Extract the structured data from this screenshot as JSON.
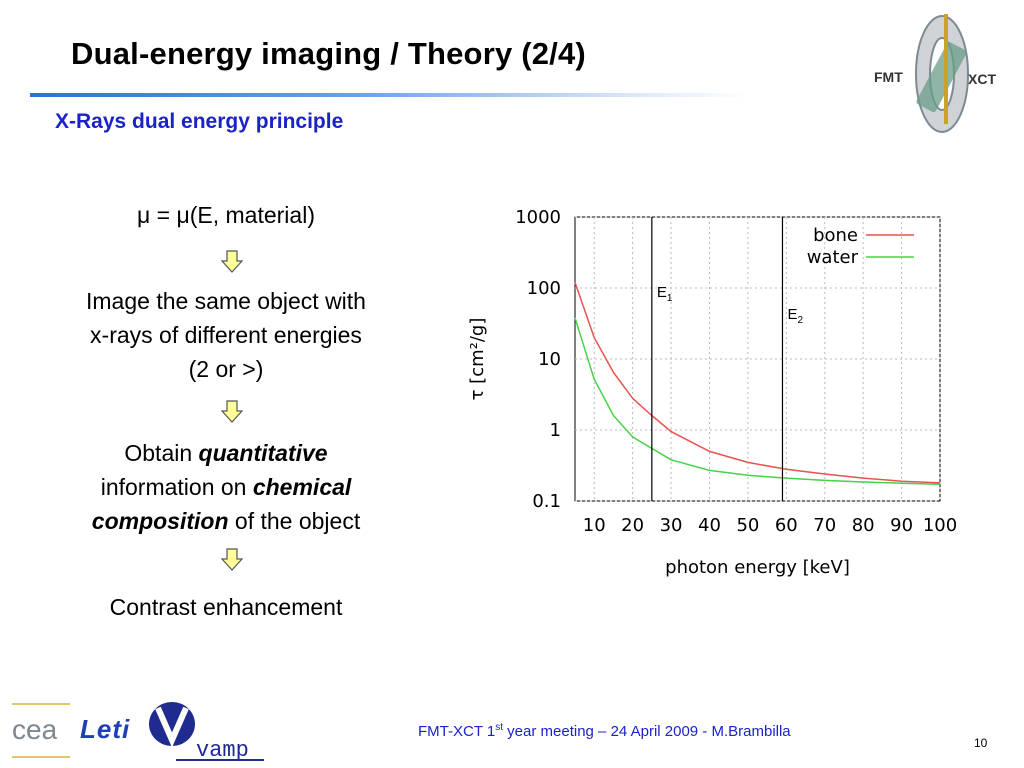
{
  "slide": {
    "title": "Dual-energy imaging / Theory (2/4)",
    "subtitle": "X-Rays dual energy principle",
    "page_number": "10"
  },
  "logos": {
    "fmt_left": "FMT",
    "fmt_right": "XCT",
    "cea": "cea",
    "leti": "Leti",
    "vamp": "vamp"
  },
  "content": {
    "formula": "μ = μ(E, material)",
    "step1_line1": "Image the same object  with",
    "step1_line2": "x-rays of different energies",
    "step1_line3": "(2 or >)",
    "step2_prefix": "Obtain ",
    "step2_emph1": "quantitative",
    "step2_mid": "information on ",
    "step2_emph2": "chemical",
    "step2_emph3": "composition",
    "step2_suffix": " of the object",
    "step3": "Contrast enhancement"
  },
  "footer": {
    "text_prefix": "FMT-XCT 1",
    "text_sup": "st",
    "text_suffix": " year meeting – 24 April 2009 - M.Brambilla"
  },
  "chart_data": {
    "type": "line",
    "xlabel": "photon energy [keV]",
    "ylabel": "τ [cm²/g]",
    "xlim": [
      5,
      100
    ],
    "ylim": [
      0.1,
      1000
    ],
    "yscale": "log",
    "grid": true,
    "legend": "top-right",
    "x_ticks": [
      "10",
      "20",
      "30",
      "40",
      "50",
      "60",
      "70",
      "80",
      "90",
      "100"
    ],
    "y_ticks": [
      "0.1",
      "1",
      "10",
      "100",
      "1000"
    ],
    "series": [
      {
        "name": "bone",
        "color": "#e8534f",
        "x": [
          5,
          10,
          15,
          20,
          25,
          30,
          40,
          50,
          60,
          70,
          80,
          90,
          100
        ],
        "y": [
          120,
          20,
          6.5,
          2.8,
          1.6,
          0.95,
          0.5,
          0.35,
          0.28,
          0.24,
          0.21,
          0.19,
          0.18
        ]
      },
      {
        "name": "water",
        "color": "#46d24a",
        "x": [
          5,
          10,
          15,
          20,
          25,
          30,
          40,
          50,
          60,
          70,
          80,
          90,
          100
        ],
        "y": [
          38,
          5.2,
          1.6,
          0.8,
          0.55,
          0.38,
          0.27,
          0.23,
          0.21,
          0.195,
          0.185,
          0.178,
          0.172
        ]
      }
    ],
    "markers": [
      {
        "label": "E",
        "sub": "1",
        "x": 25
      },
      {
        "label": "E",
        "sub": "2",
        "x": 59
      }
    ]
  }
}
